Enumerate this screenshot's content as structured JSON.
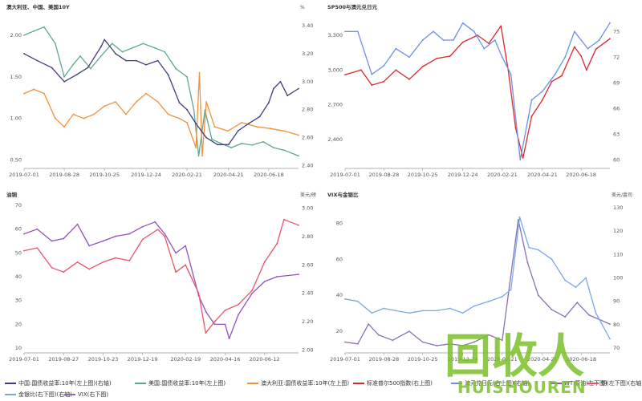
{
  "colors": {
    "navy": "#3d3f7a",
    "teal": "#5aa893",
    "orange": "#f2913a",
    "red": "#d9272e",
    "blue": "#6f8fe3",
    "purple": "#8e52c0",
    "pink": "#e8536b",
    "lightblue": "#7aa6e6",
    "lavender": "#8a6fb5",
    "watermark_green": "#7bbf2a"
  },
  "legend": {
    "items": [
      {
        "label": "中国:国债收益率:10年(左上图)(右轴)",
        "color": "#3d3f7a"
      },
      {
        "label": "美国:国债收益率:10年(左上图)",
        "color": "#5aa893"
      },
      {
        "label": "澳大利亚:国债收益率:10年(左上图)",
        "color": "#f2913a"
      },
      {
        "label": "标准普尔500指数(右上图)",
        "color": "#d9272e"
      },
      {
        "label": "澳元兑日元(右上图)(右轴)",
        "color": "#6f8fe3"
      },
      {
        "label": "WTI原油(左下图)",
        "color": "#8e52c0"
      },
      {
        "label": "铜(左下图)(右轴)",
        "color": "#e8536b"
      },
      {
        "label": "金银比(右下图)(右轴)",
        "color": "#7aa6e6"
      },
      {
        "label": "VIX(右下图)",
        "color": "#8a6fb5"
      }
    ]
  },
  "watermark": {
    "big": "回收人",
    "sub": "HUISHOUREN"
  },
  "chart_data": [
    {
      "type": "line",
      "title": "澳大利亚、中国、美国10Y",
      "ylabel_left": "",
      "ylabel_right": "%",
      "x_ticks": [
        "2019-07-01",
        "2019-08-28",
        "2019-10-25",
        "2019-12-24",
        "2020-02-21",
        "2020-04-21",
        "2020-06-18"
      ],
      "x_range": [
        "2019-07-01",
        "2020-07-31"
      ],
      "left_axis": {
        "min": 0.4,
        "max": 2.25,
        "ticks": [
          0.5,
          1.0,
          1.5,
          2.0
        ]
      },
      "right_axis": {
        "min": 2.38,
        "max": 3.48,
        "ticks": [
          2.4,
          2.6,
          2.8,
          3.0,
          3.2,
          3.4
        ]
      },
      "series": [
        {
          "name": "美国:国债收益率:10年(左上图)",
          "color": "#5aa893",
          "axis": "left",
          "x": [
            "2019-07-01",
            "2019-07-15",
            "2019-07-30",
            "2019-08-15",
            "2019-08-28",
            "2019-09-10",
            "2019-09-20",
            "2019-10-05",
            "2019-10-20",
            "2019-11-05",
            "2019-11-20",
            "2019-12-05",
            "2019-12-20",
            "2020-01-05",
            "2020-01-20",
            "2020-02-05",
            "2020-02-21",
            "2020-03-02",
            "2020-03-09",
            "2020-03-18",
            "2020-03-28",
            "2020-04-10",
            "2020-04-25",
            "2020-05-10",
            "2020-05-25",
            "2020-06-10",
            "2020-06-25",
            "2020-07-10",
            "2020-07-31"
          ],
          "y": [
            2.0,
            2.05,
            2.1,
            1.9,
            1.5,
            1.65,
            1.75,
            1.6,
            1.75,
            1.9,
            1.8,
            1.85,
            1.9,
            1.85,
            1.8,
            1.6,
            1.5,
            1.1,
            0.55,
            1.1,
            0.75,
            0.7,
            0.65,
            0.7,
            0.68,
            0.72,
            0.65,
            0.62,
            0.55
          ]
        },
        {
          "name": "澳大利亚:国债收益率:10年(左上图)",
          "color": "#f2913a",
          "axis": "left",
          "x": [
            "2019-07-01",
            "2019-07-15",
            "2019-07-30",
            "2019-08-15",
            "2019-08-28",
            "2019-09-10",
            "2019-09-25",
            "2019-10-10",
            "2019-10-25",
            "2019-11-10",
            "2019-11-25",
            "2019-12-10",
            "2019-12-24",
            "2020-01-10",
            "2020-01-25",
            "2020-02-10",
            "2020-02-21",
            "2020-03-05",
            "2020-03-10",
            "2020-03-14",
            "2020-03-20",
            "2020-04-01",
            "2020-04-20",
            "2020-05-10",
            "2020-06-01",
            "2020-06-20",
            "2020-07-10",
            "2020-07-31"
          ],
          "y": [
            1.3,
            1.35,
            1.3,
            1.0,
            0.9,
            1.05,
            1.0,
            1.05,
            1.15,
            1.2,
            1.05,
            1.2,
            1.3,
            1.2,
            1.05,
            1.0,
            0.95,
            0.65,
            1.55,
            0.55,
            1.2,
            0.9,
            0.85,
            0.95,
            0.9,
            0.88,
            0.85,
            0.8
          ]
        },
        {
          "name": "中国:国债收益率:10年(左上图)(右轴)",
          "color": "#3d3f7a",
          "axis": "right",
          "x": [
            "2019-07-01",
            "2019-07-20",
            "2019-08-10",
            "2019-08-28",
            "2019-09-15",
            "2019-10-01",
            "2019-10-20",
            "2019-10-25",
            "2019-11-10",
            "2019-11-25",
            "2019-12-10",
            "2019-12-24",
            "2020-01-10",
            "2020-01-25",
            "2020-02-10",
            "2020-02-21",
            "2020-03-05",
            "2020-03-20",
            "2020-04-05",
            "2020-04-21",
            "2020-05-05",
            "2020-05-20",
            "2020-06-05",
            "2020-06-18",
            "2020-06-25",
            "2020-07-05",
            "2020-07-15",
            "2020-07-31"
          ],
          "y": [
            3.2,
            3.15,
            3.1,
            3.0,
            3.05,
            3.1,
            3.25,
            3.3,
            3.2,
            3.15,
            3.15,
            3.12,
            3.15,
            3.05,
            2.85,
            2.8,
            2.7,
            2.6,
            2.55,
            2.55,
            2.65,
            2.7,
            2.75,
            2.85,
            2.95,
            3.0,
            2.9,
            2.95
          ]
        }
      ]
    },
    {
      "type": "line",
      "title": "SP500与澳元兑日元",
      "ylabel_left": "",
      "ylabel_right": "",
      "x_ticks": [
        "2019-07-01",
        "2019-08-28",
        "2019-10-25",
        "2019-12-24",
        "2020-02-21",
        "2020-04-21",
        "2020-06-18"
      ],
      "x_range": [
        "2019-07-01",
        "2020-07-31"
      ],
      "left_axis": {
        "min": 2150,
        "max": 3480,
        "ticks": [
          2100,
          2400,
          2700,
          3000,
          3300
        ]
      },
      "right_axis": {
        "min": 59,
        "max": 77,
        "ticks": [
          60,
          63,
          66,
          69,
          72,
          75
        ]
      },
      "series": [
        {
          "name": "标准普尔500指数(右上图)",
          "color": "#d9272e",
          "axis": "left",
          "x": [
            "2019-07-01",
            "2019-07-25",
            "2019-08-10",
            "2019-08-28",
            "2019-09-15",
            "2019-10-05",
            "2019-10-25",
            "2019-11-15",
            "2019-12-05",
            "2019-12-24",
            "2020-01-15",
            "2020-02-01",
            "2020-02-19",
            "2020-03-01",
            "2020-03-12",
            "2020-03-23",
            "2020-04-05",
            "2020-04-21",
            "2020-05-05",
            "2020-05-20",
            "2020-06-08",
            "2020-06-18",
            "2020-06-26",
            "2020-07-10",
            "2020-07-31"
          ],
          "y": [
            2960,
            3000,
            2870,
            2900,
            3000,
            2920,
            3030,
            3100,
            3120,
            3240,
            3300,
            3230,
            3380,
            3000,
            2500,
            2240,
            2600,
            2740,
            2900,
            2950,
            3200,
            3120,
            3000,
            3180,
            3270
          ]
        },
        {
          "name": "澳元兑日元(右上图)(右轴)",
          "color": "#6f8fe3",
          "axis": "right",
          "x": [
            "2019-07-01",
            "2019-07-20",
            "2019-08-10",
            "2019-08-28",
            "2019-09-15",
            "2019-10-05",
            "2019-10-25",
            "2019-11-10",
            "2019-11-25",
            "2019-12-10",
            "2019-12-24",
            "2020-01-10",
            "2020-01-25",
            "2020-02-10",
            "2020-02-21",
            "2020-03-05",
            "2020-03-19",
            "2020-04-05",
            "2020-04-21",
            "2020-05-10",
            "2020-05-25",
            "2020-06-08",
            "2020-06-18",
            "2020-06-28",
            "2020-07-15",
            "2020-07-31"
          ],
          "y": [
            75,
            75,
            70,
            71,
            73,
            72,
            74,
            75,
            74,
            74,
            76,
            75,
            73,
            74,
            72,
            70,
            60,
            67,
            68,
            70,
            72,
            75,
            74,
            73,
            74,
            76
          ]
        }
      ]
    },
    {
      "type": "line",
      "title": "油铜",
      "ylabel_left": "",
      "ylabel_right": "美元/磅",
      "x_ticks": [
        "2019-07-01",
        "2019-08-27",
        "2019-10-23",
        "2019-12-19",
        "2020-02-19",
        "2020-04-16",
        "2020-06-12"
      ],
      "x_range": [
        "2019-07-01",
        "2020-07-31"
      ],
      "left_axis": {
        "min": 8,
        "max": 70,
        "ticks": [
          10,
          20,
          30,
          40,
          50,
          60,
          70
        ]
      },
      "right_axis": {
        "min": 1.98,
        "max": 3.02,
        "ticks": [
          2.0,
          2.2,
          2.4,
          2.6,
          2.8,
          3.0
        ]
      },
      "series": [
        {
          "name": "WTI原油(左下图)",
          "color": "#8e52c0",
          "axis": "left",
          "x": [
            "2019-07-01",
            "2019-07-20",
            "2019-08-10",
            "2019-08-27",
            "2019-09-16",
            "2019-10-03",
            "2019-10-23",
            "2019-11-10",
            "2019-11-30",
            "2019-12-19",
            "2020-01-06",
            "2020-01-20",
            "2020-02-05",
            "2020-02-19",
            "2020-03-09",
            "2020-03-20",
            "2020-04-01",
            "2020-04-16",
            "2020-04-22",
            "2020-05-05",
            "2020-05-25",
            "2020-06-12",
            "2020-06-30",
            "2020-07-31"
          ],
          "y": [
            58,
            60,
            55,
            56,
            62,
            53,
            55,
            57,
            58,
            61,
            63,
            58,
            50,
            53,
            32,
            25,
            20,
            20,
            14,
            24,
            33,
            38,
            40,
            41
          ]
        },
        {
          "name": "铜(左下图)(右轴)",
          "color": "#e8536b",
          "axis": "right",
          "x": [
            "2019-07-01",
            "2019-07-20",
            "2019-08-10",
            "2019-08-27",
            "2019-09-16",
            "2019-10-03",
            "2019-10-23",
            "2019-11-10",
            "2019-11-30",
            "2019-12-19",
            "2020-01-10",
            "2020-01-20",
            "2020-02-05",
            "2020-02-19",
            "2020-03-09",
            "2020-03-19",
            "2020-04-01",
            "2020-04-16",
            "2020-05-05",
            "2020-05-25",
            "2020-06-12",
            "2020-06-30",
            "2020-07-10",
            "2020-07-31"
          ],
          "y": [
            2.7,
            2.72,
            2.58,
            2.55,
            2.62,
            2.57,
            2.62,
            2.65,
            2.63,
            2.78,
            2.85,
            2.8,
            2.55,
            2.6,
            2.4,
            2.12,
            2.2,
            2.28,
            2.32,
            2.42,
            2.62,
            2.75,
            2.92,
            2.88
          ]
        }
      ]
    },
    {
      "type": "line",
      "title": "VIX与金银比",
      "ylabel_left": "",
      "ylabel_right": "美元/盎司",
      "x_ticks": [
        "2019-07-01",
        "2019-08-28",
        "2019-10-25",
        "2019-12-24",
        "2020-02-21",
        "2020-04-21",
        "2020-06-18"
      ],
      "x_range": [
        "2019-07-01",
        "2020-07-31"
      ],
      "left_axis": {
        "min": 8,
        "max": 90,
        "ticks": [
          20,
          40,
          60,
          80
        ]
      },
      "right_axis": {
        "min": 68,
        "max": 131,
        "ticks": [
          70,
          80,
          90,
          100,
          110,
          120,
          130
        ]
      },
      "series": [
        {
          "name": "VIX(右下图)",
          "color": "#8a6fb5",
          "axis": "left",
          "x": [
            "2019-07-01",
            "2019-07-20",
            "2019-08-05",
            "2019-08-20",
            "2019-09-10",
            "2019-10-05",
            "2019-10-25",
            "2019-11-15",
            "2019-12-05",
            "2019-12-24",
            "2020-01-10",
            "2020-02-01",
            "2020-02-21",
            "2020-03-01",
            "2020-03-16",
            "2020-03-30",
            "2020-04-15",
            "2020-05-05",
            "2020-05-25",
            "2020-06-12",
            "2020-06-30",
            "2020-07-31"
          ],
          "y": [
            14,
            13,
            24,
            18,
            15,
            20,
            14,
            12,
            13,
            12,
            14,
            18,
            15,
            40,
            82,
            58,
            40,
            32,
            28,
            36,
            29,
            24
          ]
        },
        {
          "name": "金银比(右下图)(右轴)",
          "color": "#7aa6e6",
          "axis": "right",
          "x": [
            "2019-07-01",
            "2019-07-20",
            "2019-08-10",
            "2019-08-28",
            "2019-09-15",
            "2019-10-05",
            "2019-10-25",
            "2019-11-15",
            "2019-12-05",
            "2019-12-24",
            "2020-01-10",
            "2020-02-01",
            "2020-02-21",
            "2020-03-05",
            "2020-03-18",
            "2020-04-01",
            "2020-04-15",
            "2020-05-05",
            "2020-05-25",
            "2020-06-10",
            "2020-06-25",
            "2020-07-10",
            "2020-07-31"
          ],
          "y": [
            91,
            90,
            85,
            87,
            86,
            85,
            86,
            86,
            87,
            85,
            88,
            90,
            92,
            95,
            126,
            113,
            112,
            108,
            99,
            96,
            100,
            85,
            74
          ]
        }
      ]
    }
  ]
}
